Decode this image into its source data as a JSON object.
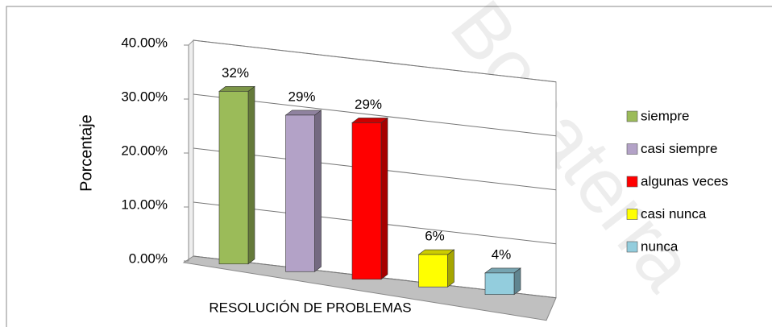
{
  "chart_data": {
    "type": "bar3d",
    "watermark": "Bonaterra",
    "ylabel": "Porcentaje",
    "xlabel": "RESOLUCIÓN DE PROBLEMAS",
    "categories": [
      "siempre",
      "casi siempre",
      "algunas veces",
      "casi nunca",
      "nunca"
    ],
    "values": [
      32,
      29,
      29,
      6,
      4
    ],
    "value_labels": [
      "32%",
      "29%",
      "29%",
      "6%",
      "4%"
    ],
    "colors": [
      "#9bbb59",
      "#b3a2c7",
      "#ff0000",
      "#ffff00",
      "#93cddd"
    ],
    "ylim": [
      0,
      40
    ],
    "yticks": [
      {
        "value": 0,
        "label": "0.00%"
      },
      {
        "value": 10,
        "label": "10.00%"
      },
      {
        "value": 20,
        "label": "20.00%"
      },
      {
        "value": 30,
        "label": "30.00%"
      },
      {
        "value": 40,
        "label": "40.00%"
      }
    ],
    "grid": true,
    "legend": "right"
  }
}
